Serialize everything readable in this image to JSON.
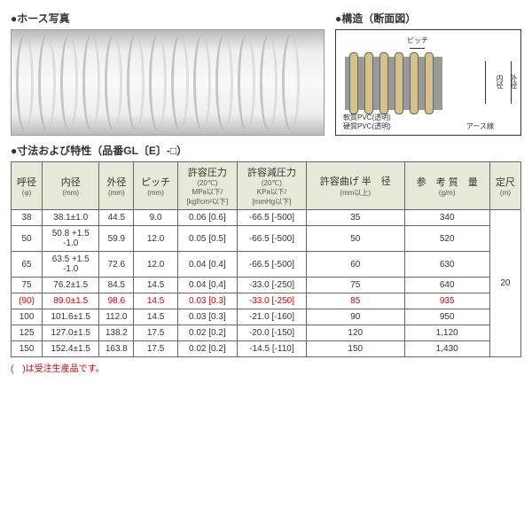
{
  "sections": {
    "photo_title": "●ホース写真",
    "struct_title": "●構造（断面図）",
    "table_title": "●寸法および特性（品番GL〔E〕-□）"
  },
  "struct_labels": {
    "pitch": "ピッチ",
    "inner_dia": "内径",
    "outer_dia": "外径",
    "soft_pvc": "軟質PVC(透明)",
    "hard_pvc": "硬質PVC(透明)",
    "earth": "アース線"
  },
  "table": {
    "headers": [
      {
        "main": "呼径",
        "sub": "(φ)"
      },
      {
        "main": "内径",
        "sub": "(mm)"
      },
      {
        "main": "外径",
        "sub": "(mm)"
      },
      {
        "main": "ピッチ",
        "sub": "(mm)"
      },
      {
        "main": "許容圧力",
        "sub": "(20℃)\nMPa以下/\n[kgf/cm²以下]"
      },
      {
        "main": "許容減圧力",
        "sub": "(20℃)\nKPa以下/\n[mmHg以下]"
      },
      {
        "main": "許容曲げ\n半　径",
        "sub": "(mm以上)"
      },
      {
        "main": "参　考\n質　量",
        "sub": "(g/m)"
      },
      {
        "main": "定尺",
        "sub": "(m)"
      }
    ],
    "rows": [
      {
        "mto": false,
        "cells": [
          "38",
          "38.1±1.0",
          "44.5",
          "9.0",
          "0.06 [0.6]",
          "-66.5 [-500]",
          "35",
          "340"
        ]
      },
      {
        "mto": false,
        "cells": [
          "50",
          "50.8 +1.5\n-1.0",
          "59.9",
          "12.0",
          "0.05 [0.5]",
          "-66.5 [-500]",
          "50",
          "520"
        ]
      },
      {
        "mto": false,
        "cells": [
          "65",
          "63.5 +1.5\n-1.0",
          "72.6",
          "12.0",
          "0.04 [0.4]",
          "-66.5 [-500]",
          "60",
          "630"
        ]
      },
      {
        "mto": false,
        "cells": [
          "75",
          "76.2±1.5",
          "84.5",
          "14.5",
          "0.04 [0.4]",
          "-33.0 [-250]",
          "75",
          "640"
        ]
      },
      {
        "mto": true,
        "cells": [
          "(90)",
          "89.0±1.5",
          "98.6",
          "14.5",
          "0.03 [0.3]",
          "-33.0 [-250]",
          "85",
          "935"
        ]
      },
      {
        "mto": false,
        "cells": [
          "100",
          "101.6±1.5",
          "112.0",
          "14.5",
          "0.03 [0.3]",
          "-21.0 [-160]",
          "90",
          "950"
        ]
      },
      {
        "mto": false,
        "cells": [
          "125",
          "127.0±1.5",
          "138.2",
          "17.5",
          "0.02 [0.2]",
          "-20.0 [-150]",
          "120",
          "1,120"
        ]
      },
      {
        "mto": false,
        "cells": [
          "150",
          "152.4±1.5",
          "163.8",
          "17.5",
          "0.02 [0.2]",
          "-14.5 [-110]",
          "150",
          "1,430"
        ]
      }
    ],
    "fixed_length": "20"
  },
  "footnote": {
    "bracket": "(　)",
    "text": "は受注生産品です。"
  },
  "colors": {
    "header_bg": "#e8e8d8",
    "mto": "#d00",
    "border": "#666",
    "rib": "#d4c28a",
    "hose_body": "#999"
  }
}
